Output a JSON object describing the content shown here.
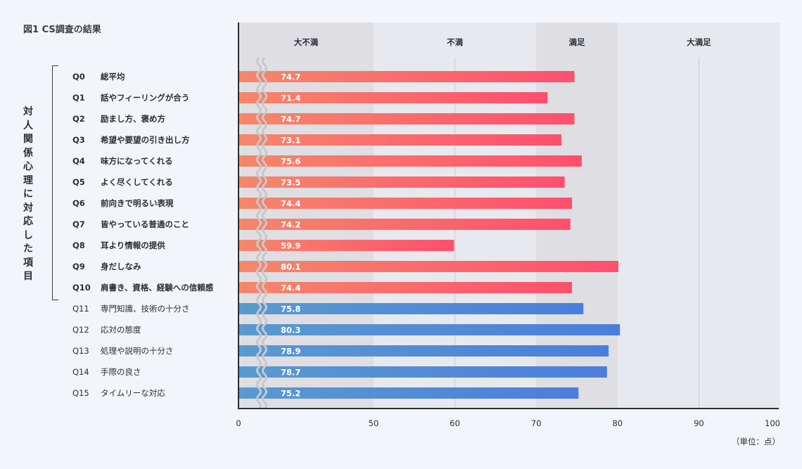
{
  "title": "図1  CS調査の結果",
  "group_label": "対人関係心理に対応した項目",
  "unit_label": "（単位：点）",
  "colors": {
    "group_bar_start": "#f5876a",
    "group_bar_end": "#ff4f6e",
    "other_bar_start": "#5a9acf",
    "other_bar_end": "#4a7edc",
    "band_dark": "#dfdee3",
    "band_light": "#e8e9ee"
  },
  "chart_data": {
    "type": "bar",
    "orientation": "horizontal",
    "axis_break": [
      0,
      50
    ],
    "xlim": [
      0,
      100
    ],
    "xticks": [
      0,
      50,
      60,
      70,
      80,
      90,
      100
    ],
    "bands": [
      {
        "label": "大不満",
        "from": 0,
        "to": 50
      },
      {
        "label": "不満",
        "from": 50,
        "to": 70
      },
      {
        "label": "満足",
        "from": 70,
        "to": 80
      },
      {
        "label": "大満足",
        "from": 80,
        "to": 100
      }
    ],
    "items": [
      {
        "id": "Q0",
        "label": "総平均",
        "value": 74.7,
        "group": true
      },
      {
        "id": "Q1",
        "label": "話やフィーリングが合う",
        "value": 71.4,
        "group": true
      },
      {
        "id": "Q2",
        "label": "励まし方、褒め方",
        "value": 74.7,
        "group": true
      },
      {
        "id": "Q3",
        "label": "希望や要望の引き出し方",
        "value": 73.1,
        "group": true
      },
      {
        "id": "Q4",
        "label": "味方になってくれる",
        "value": 75.6,
        "group": true
      },
      {
        "id": "Q5",
        "label": "よく尽くしてくれる",
        "value": 73.5,
        "group": true
      },
      {
        "id": "Q6",
        "label": "前向きで明るい表現",
        "value": 74.4,
        "group": true
      },
      {
        "id": "Q7",
        "label": "皆やっている普通のこと",
        "value": 74.2,
        "group": true
      },
      {
        "id": "Q8",
        "label": "耳より情報の提供",
        "value": 59.9,
        "group": true
      },
      {
        "id": "Q9",
        "label": "身だしなみ",
        "value": 80.1,
        "group": true
      },
      {
        "id": "Q10",
        "label": "肩書き、資格、経験への信頼感",
        "value": 74.4,
        "group": true
      },
      {
        "id": "Q11",
        "label": "専門知識、技術の十分さ",
        "value": 75.8,
        "group": false
      },
      {
        "id": "Q12",
        "label": "応対の態度",
        "value": 80.3,
        "group": false
      },
      {
        "id": "Q13",
        "label": "処理や説明の十分さ",
        "value": 78.9,
        "group": false
      },
      {
        "id": "Q14",
        "label": "手際の良さ",
        "value": 78.7,
        "group": false
      },
      {
        "id": "Q15",
        "label": "タイムリーな対応",
        "value": 75.2,
        "group": false
      }
    ]
  }
}
